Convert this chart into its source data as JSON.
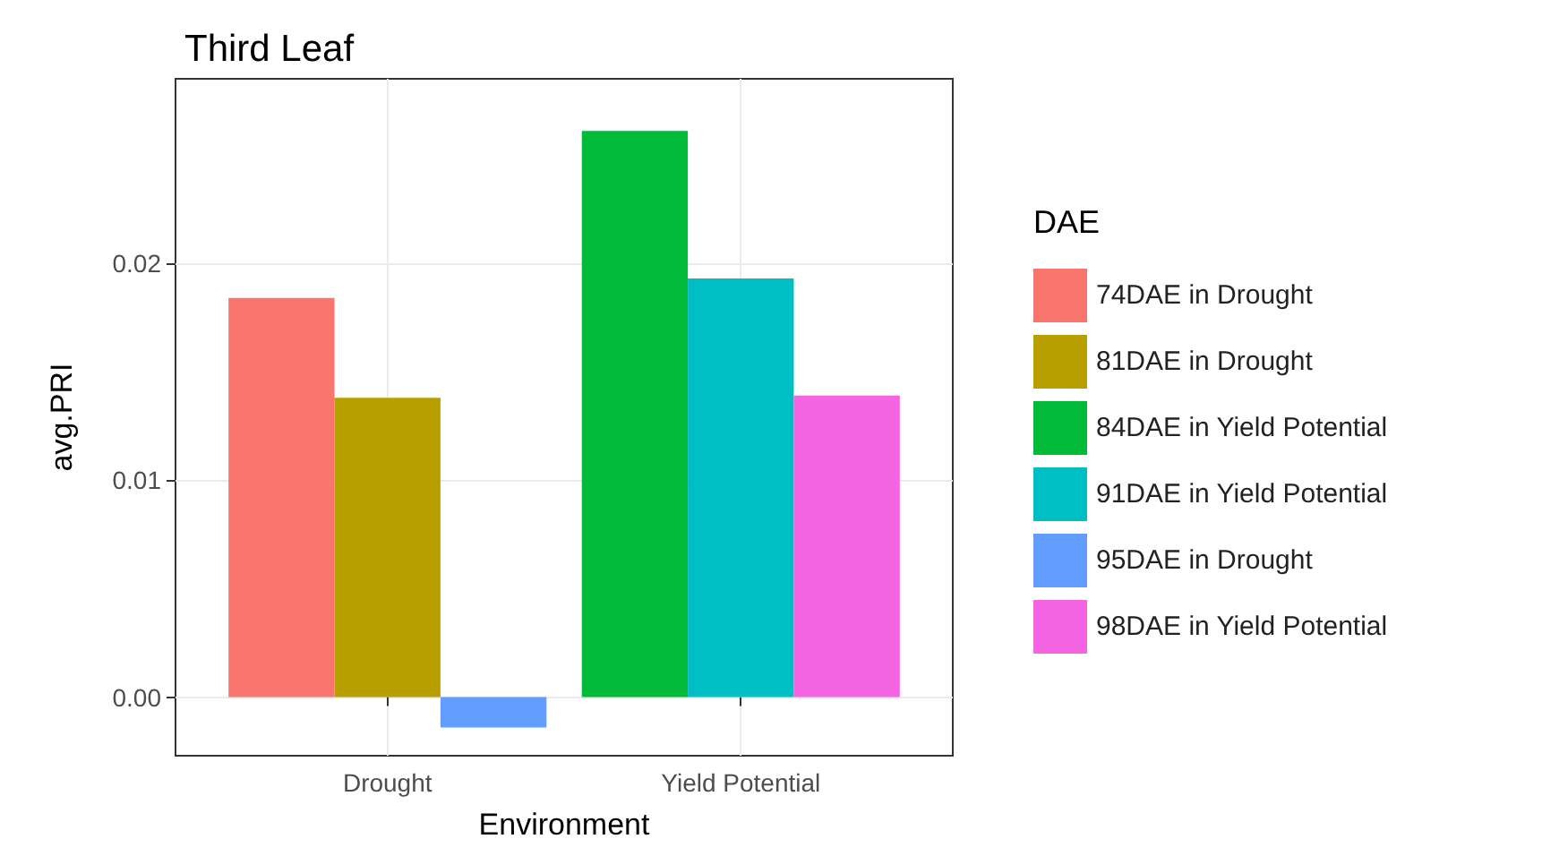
{
  "chart_data": {
    "type": "bar",
    "title": "Third Leaf",
    "xlabel": "Environment",
    "ylabel": "avg.PRI",
    "legend_title": "DAE",
    "categories": [
      "Drought",
      "Yield Potential"
    ],
    "series": [
      {
        "name": "74DAE in Drought",
        "color": "#f8766d",
        "values": [
          0.0184,
          null
        ]
      },
      {
        "name": "81DAE in Drought",
        "color": "#b79f00",
        "values": [
          0.0138,
          null
        ]
      },
      {
        "name": "84DAE in Yield Potential",
        "color": "#00ba38",
        "values": [
          null,
          0.0261
        ]
      },
      {
        "name": "91DAE in Yield Potential",
        "color": "#00bfc4",
        "values": [
          null,
          0.0193
        ]
      },
      {
        "name": "95DAE in Drought",
        "color": "#619cff",
        "values": [
          -0.0014,
          null
        ]
      },
      {
        "name": "98DAE in Yield Potential",
        "color": "#f564e3",
        "values": [
          null,
          0.0139
        ]
      }
    ],
    "ylim": [
      -0.0027,
      0.0285
    ],
    "yticks": [
      {
        "value": 0,
        "label": "0.00"
      },
      {
        "value": 0.01,
        "label": "0.01"
      },
      {
        "value": 0.02,
        "label": "0.02"
      }
    ],
    "grid": true,
    "legend": "right"
  }
}
